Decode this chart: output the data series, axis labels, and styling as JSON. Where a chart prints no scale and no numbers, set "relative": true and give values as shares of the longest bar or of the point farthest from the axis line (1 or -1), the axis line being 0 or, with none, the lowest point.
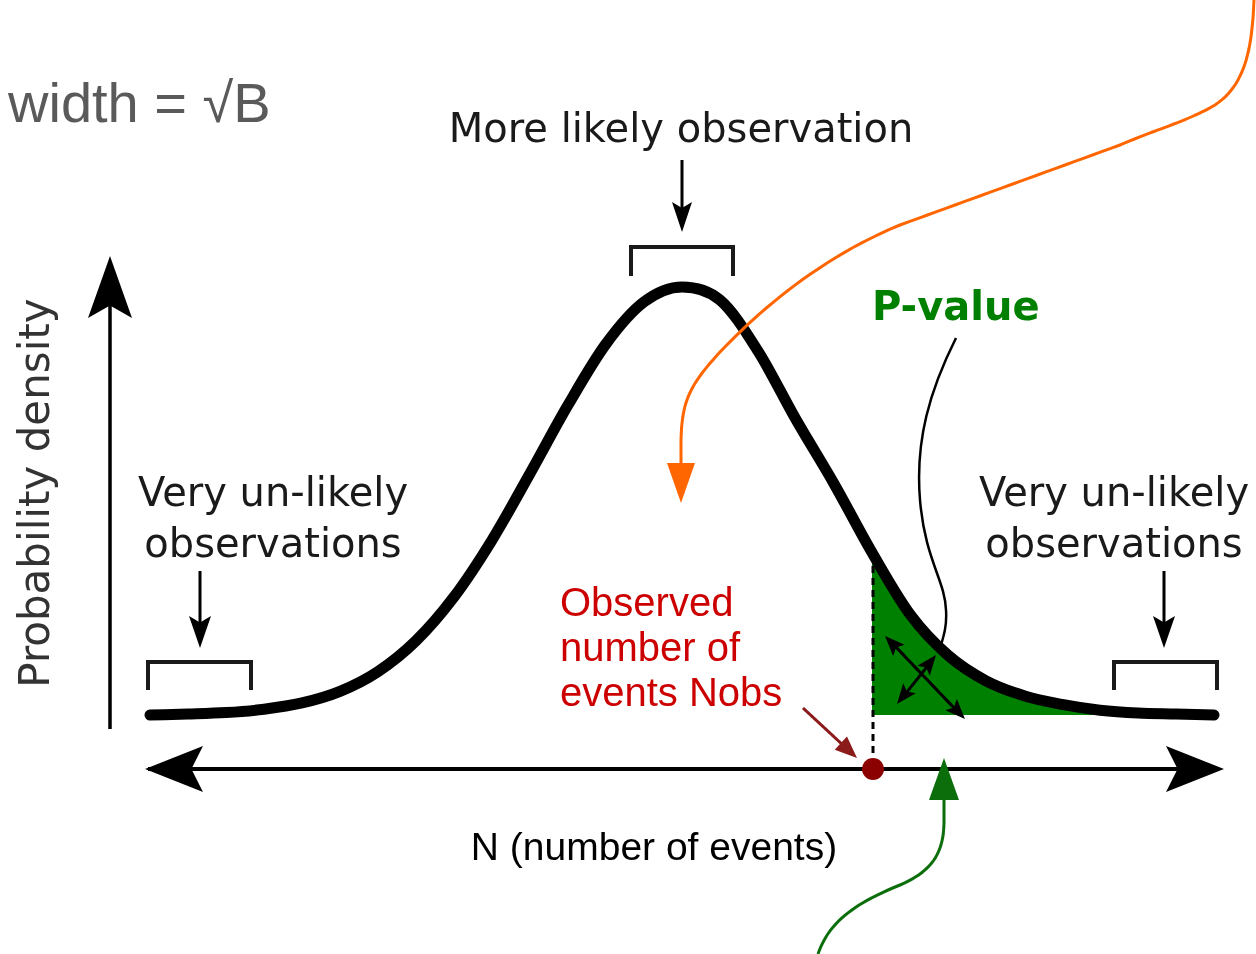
{
  "chart_data": {
    "type": "line",
    "relative": true,
    "xlabel": "N (number of events)",
    "ylabel": "Probability density",
    "marker": "none",
    "categories": [
      null,
      null,
      null,
      null,
      null,
      null,
      null,
      null,
      null,
      null,
      null,
      null,
      null,
      null,
      null,
      null,
      null,
      null,
      null,
      null,
      null,
      null,
      null,
      null,
      null,
      null,
      null,
      null,
      null
    ],
    "series": [
      {
        "color": "#000000",
        "values": [
          0.112,
          0.114,
          0.117,
          0.124,
          0.137,
          0.161,
          0.202,
          0.266,
          0.357,
          0.475,
          0.613,
          0.755,
          0.882,
          0.969,
          1,
          0.973,
          0.867,
          0.725,
          0.592,
          0.449,
          0.321,
          0.236,
          0.183,
          0.152,
          0.134,
          0.122,
          0.116,
          0.114,
          0.112
        ]
      },
      {
        "type": "area",
        "name": "P-value",
        "color": "#008000",
        "values": [
          null,
          null,
          null,
          null,
          null,
          null,
          null,
          null,
          null,
          null,
          null,
          null,
          null,
          null,
          null,
          null,
          null,
          null,
          null,
          0.449,
          0.321,
          0.236,
          0.183,
          0.152,
          0.134,
          0.122,
          0.116,
          0.114,
          0.112
        ]
      }
    ],
    "annotations": [
      "width = √B",
      "More likely observation",
      "Very un-likely observations",
      "Very un-likely observations",
      "Observed number of events Nobs"
    ]
  }
}
